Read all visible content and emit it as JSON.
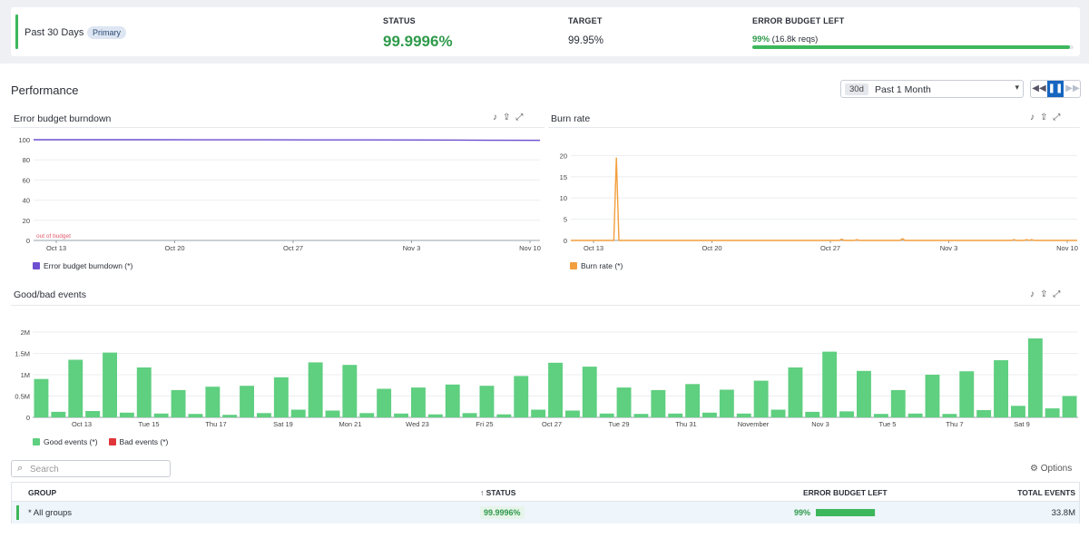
{
  "summary": {
    "range_label": "Past 30 Days",
    "badge": "Primary",
    "status_header": "STATUS",
    "status_value": "99.9996%",
    "target_header": "TARGET",
    "target_value": "99.95%",
    "budget_header": "ERROR BUDGET LEFT",
    "budget_percent": "99%",
    "budget_reqs": " (16.8k reqs)",
    "budget_fraction": 0.99
  },
  "performance": {
    "title": "Performance",
    "time_chip": "30d",
    "time_label": "Past 1 Month"
  },
  "widgets": {
    "burndown_title": "Error budget burndown",
    "burnrate_title": "Burn rate",
    "events_title": "Good/bad events"
  },
  "colors": {
    "good": "#5fcf80",
    "bad": "#e0363a",
    "burndown": "#6e4fd1",
    "burnrate": "#f29f3d",
    "accent": "#3db75b"
  },
  "chart_data": [
    {
      "type": "line",
      "title": "Error budget burndown",
      "x_ticks": [
        "Oct 13",
        "Oct 20",
        "Oct 27",
        "Nov 3",
        "Nov 10"
      ],
      "y_ticks": [
        0,
        20,
        40,
        60,
        80,
        100
      ],
      "ylim": [
        0,
        100
      ],
      "annotation": "out of budget",
      "series": [
        {
          "name": "Error budget burndown (*)",
          "values": [
            100,
            100,
            100,
            99.9,
            99.9,
            99.8,
            99.8,
            99.7,
            99.5,
            99.4
          ]
        }
      ]
    },
    {
      "type": "line",
      "title": "Burn rate",
      "x_ticks": [
        "Oct 13",
        "Oct 20",
        "Oct 27",
        "Nov 3",
        "Nov 10"
      ],
      "y_ticks": [
        0,
        5,
        10,
        15,
        20
      ],
      "ylim": [
        0,
        22
      ],
      "series": [
        {
          "name": "Burn rate (*)",
          "values": [
            0,
            0,
            0,
            0,
            0,
            0,
            0,
            0,
            0,
            0,
            0,
            0,
            0,
            0,
            0,
            0,
            0,
            0,
            19.5,
            0,
            0,
            0,
            0,
            0,
            0,
            0,
            0,
            0,
            0,
            0,
            0,
            0,
            0,
            0,
            0,
            0,
            0,
            0,
            0,
            0,
            0,
            0,
            0,
            0,
            0,
            0,
            0,
            0,
            0,
            0,
            0,
            0,
            0,
            0,
            0,
            0,
            0,
            0,
            0,
            0,
            0,
            0,
            0,
            0,
            0,
            0,
            0,
            0,
            0,
            0,
            0,
            0,
            0,
            0,
            0,
            0,
            0,
            0,
            0,
            0,
            0,
            0,
            0,
            0,
            0,
            0,
            0,
            0,
            0,
            0,
            0,
            0,
            0,
            0,
            0,
            0,
            0,
            0,
            0,
            0,
            0,
            0,
            0,
            0,
            0,
            0,
            0,
            0.3,
            0,
            0,
            0,
            0,
            0,
            0.2,
            0,
            0,
            0,
            0,
            0,
            0,
            0,
            0,
            0,
            0,
            0,
            0,
            0,
            0,
            0,
            0,
            0,
            0.4,
            0,
            0,
            0,
            0,
            0,
            0,
            0,
            0,
            0,
            0,
            0,
            0,
            0,
            0,
            0,
            0,
            0,
            0,
            0,
            0,
            0,
            0,
            0,
            0,
            0,
            0,
            0,
            0,
            0,
            0,
            0,
            0,
            0,
            0,
            0,
            0,
            0,
            0,
            0,
            0,
            0,
            0,
            0,
            0.2,
            0,
            0,
            0,
            0,
            0.2,
            0,
            0.2,
            0,
            0,
            0,
            0,
            0,
            0,
            0,
            0,
            0,
            0,
            0,
            0,
            0,
            0,
            0,
            0,
            0,
            0
          ]
        }
      ]
    },
    {
      "type": "bar",
      "title": "Good/bad events",
      "x_ticks": [
        "Oct 13",
        "Tue 15",
        "Thu 17",
        "Sat 19",
        "Mon 21",
        "Wed 23",
        "Fri 25",
        "Oct 27",
        "Tue 29",
        "Thu 31",
        "November",
        "Nov 3",
        "Tue 5",
        "Thu 7",
        "Sat 9"
      ],
      "y_ticks": [
        "0",
        "0.5M",
        "1M",
        "1.5M",
        "2M"
      ],
      "ylim": [
        0,
        2000000
      ],
      "series": [
        {
          "name": "Good events (*)",
          "values": [
            900000,
            130000,
            1350000,
            150000,
            1520000,
            110000,
            1170000,
            90000,
            640000,
            80000,
            720000,
            60000,
            740000,
            100000,
            940000,
            180000,
            1290000,
            160000,
            1230000,
            100000,
            670000,
            90000,
            700000,
            70000,
            770000,
            100000,
            740000,
            70000,
            970000,
            180000,
            1280000,
            160000,
            1190000,
            90000,
            700000,
            80000,
            640000,
            90000,
            780000,
            110000,
            650000,
            90000,
            860000,
            180000,
            1170000,
            130000,
            1540000,
            140000,
            1090000,
            80000,
            640000,
            90000,
            1000000,
            80000,
            1080000,
            170000,
            1340000,
            270000,
            1850000,
            210000,
            500000
          ]
        },
        {
          "name": "Bad events (*)",
          "values": [
            0,
            0,
            0,
            0,
            0,
            0,
            0,
            0,
            0,
            0,
            0,
            0,
            0,
            0,
            0,
            0,
            0,
            0,
            0,
            0,
            0,
            0,
            0,
            0,
            0,
            0,
            0,
            0,
            0,
            0,
            0,
            0,
            0,
            0,
            0,
            0,
            0,
            0,
            0,
            0,
            0,
            0,
            0,
            0,
            0,
            0,
            0,
            0,
            0,
            0,
            0,
            0,
            0,
            0,
            0,
            0,
            0,
            0,
            0,
            0,
            0
          ]
        }
      ]
    }
  ],
  "table": {
    "search_placeholder": "Search",
    "options_label": "Options",
    "headers": {
      "group": "GROUP",
      "status": "STATUS",
      "budget": "ERROR BUDGET LEFT",
      "total": "TOTAL EVENTS"
    },
    "rows": [
      {
        "group": "* All groups",
        "status": "99.9996%",
        "budget": "99%",
        "budget_fraction": 0.99,
        "total": "33.8M"
      }
    ]
  }
}
